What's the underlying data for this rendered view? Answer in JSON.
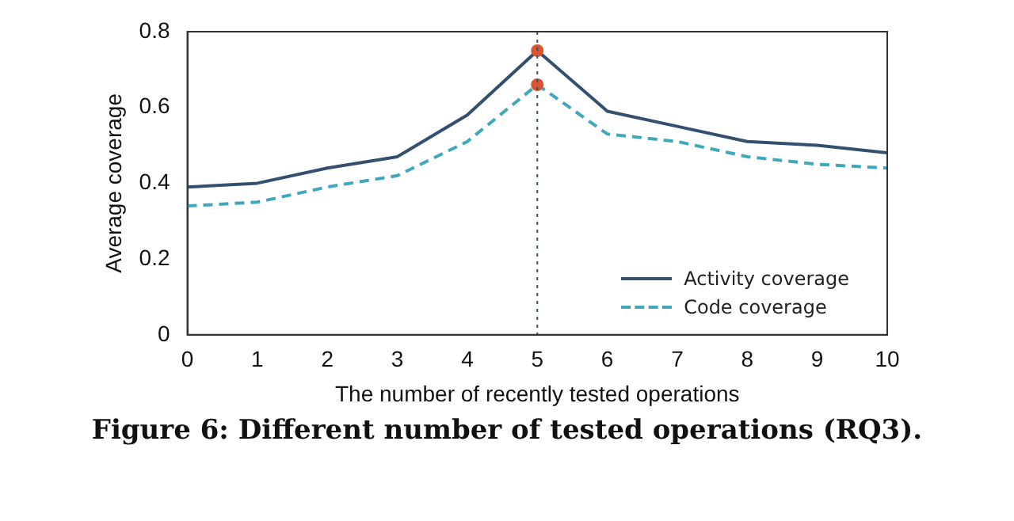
{
  "chart_data": {
    "type": "line",
    "title": "Figure 6: Different number of tested operations (RQ3).",
    "xlabel": "The number of recently tested operations",
    "ylabel": "Average coverage",
    "x": [
      0,
      1,
      2,
      3,
      4,
      5,
      6,
      7,
      8,
      9,
      10
    ],
    "series": [
      {
        "name": "Activity coverage",
        "color": "#34506e",
        "values": [
          0.39,
          0.4,
          0.44,
          0.47,
          0.58,
          0.75,
          0.59,
          0.55,
          0.51,
          0.5,
          0.48
        ],
        "line_style": "solid"
      },
      {
        "name": "Code coverage",
        "color": "#40a8ba",
        "values": [
          0.34,
          0.35,
          0.39,
          0.42,
          0.51,
          0.66,
          0.53,
          0.51,
          0.47,
          0.45,
          0.44
        ],
        "line_style": "dashed"
      },
      {
        "type": "scatter",
        "color": "#d9542f",
        "x": [
          5,
          5
        ],
        "values": [
          0.75,
          0.66
        ],
        "marker": "circle"
      }
    ],
    "xlim": [
      0,
      10
    ],
    "xticks": [
      0,
      1,
      2,
      3,
      4,
      5,
      6,
      7,
      8,
      9,
      10
    ],
    "ylim": [
      0,
      0.8
    ],
    "yticks": [
      0,
      0.2,
      0.4,
      0.6,
      0.8
    ],
    "grid": false,
    "legend": "bottom right",
    "marker": "none",
    "ref_lines": [
      {
        "axis": "x",
        "value": 5,
        "color": "#34506e",
        "line_style": "dotted"
      }
    ]
  }
}
